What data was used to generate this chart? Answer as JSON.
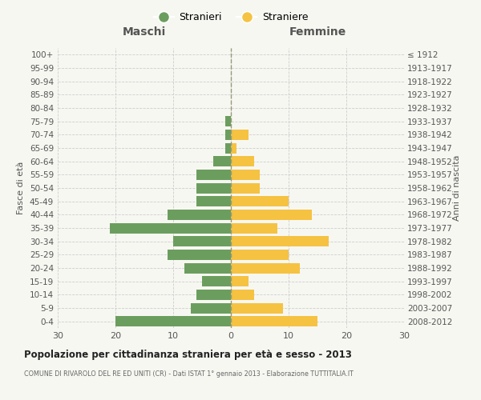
{
  "age_groups": [
    "0-4",
    "5-9",
    "10-14",
    "15-19",
    "20-24",
    "25-29",
    "30-34",
    "35-39",
    "40-44",
    "45-49",
    "50-54",
    "55-59",
    "60-64",
    "65-69",
    "70-74",
    "75-79",
    "80-84",
    "85-89",
    "90-94",
    "95-99",
    "100+"
  ],
  "birth_years": [
    "2008-2012",
    "2003-2007",
    "1998-2002",
    "1993-1997",
    "1988-1992",
    "1983-1987",
    "1978-1982",
    "1973-1977",
    "1968-1972",
    "1963-1967",
    "1958-1962",
    "1953-1957",
    "1948-1952",
    "1943-1947",
    "1938-1942",
    "1933-1937",
    "1928-1932",
    "1923-1927",
    "1918-1922",
    "1913-1917",
    "≤ 1912"
  ],
  "maschi": [
    20,
    7,
    6,
    5,
    8,
    11,
    10,
    21,
    11,
    6,
    6,
    6,
    3,
    1,
    1,
    1,
    0,
    0,
    0,
    0,
    0
  ],
  "femmine": [
    15,
    9,
    4,
    3,
    12,
    10,
    17,
    8,
    14,
    10,
    5,
    5,
    4,
    1,
    3,
    0,
    0,
    0,
    0,
    0,
    0
  ],
  "color_maschi": "#6b9e5e",
  "color_femmine": "#f5c242",
  "title": "Popolazione per cittadinanza straniera per età e sesso - 2013",
  "subtitle": "COMUNE DI RIVAROLO DEL RE ED UNITI (CR) - Dati ISTAT 1° gennaio 2013 - Elaborazione TUTTITALIA.IT",
  "ylabel_left": "Fasce di età",
  "ylabel_right": "Anni di nascita",
  "xlabel_maschi": "Maschi",
  "xlabel_femmine": "Femmine",
  "legend_maschi": "Stranieri",
  "legend_femmine": "Straniere",
  "xlim": 30,
  "background_color": "#f7f7f2",
  "grid_color": "#cccccc"
}
